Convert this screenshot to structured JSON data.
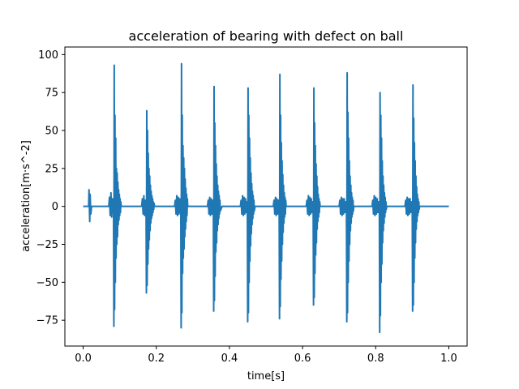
{
  "chart_data": {
    "type": "line",
    "title": "acceleration of bearing with defect on ball",
    "xlabel": "time[s]",
    "ylabel": "acceleration[m·s^-2]",
    "xlim": [
      -0.05,
      1.05
    ],
    "ylim": [
      -92,
      105
    ],
    "xticks": [
      0.0,
      0.2,
      0.4,
      0.6,
      0.8,
      1.0
    ],
    "xtick_labels": [
      "0.0",
      "0.2",
      "0.4",
      "0.6",
      "0.8",
      "1.0"
    ],
    "yticks": [
      -75,
      -50,
      -25,
      0,
      25,
      50,
      75,
      100
    ],
    "ytick_labels": [
      "−75",
      "−50",
      "−25",
      "0",
      "25",
      "50",
      "75",
      "100"
    ],
    "grid": false,
    "legend": "none",
    "series": [
      {
        "color": "#1f77b4",
        "x": [
          0.0,
          0.015,
          0.016,
          0.018,
          0.019,
          0.021,
          0.023,
          0.03,
          0.07,
          0.072,
          0.074,
          0.076,
          0.078,
          0.08,
          0.082,
          0.083,
          0.084,
          0.085,
          0.086,
          0.087,
          0.088,
          0.089,
          0.09,
          0.091,
          0.092,
          0.093,
          0.094,
          0.095,
          0.096,
          0.097,
          0.098,
          0.099,
          0.1,
          0.101,
          0.102,
          0.103,
          0.104,
          0.11,
          0.16,
          0.162,
          0.164,
          0.166,
          0.168,
          0.17,
          0.171,
          0.172,
          0.173,
          0.174,
          0.175,
          0.176,
          0.177,
          0.178,
          0.179,
          0.18,
          0.181,
          0.182,
          0.183,
          0.184,
          0.185,
          0.186,
          0.187,
          0.188,
          0.189,
          0.19,
          0.191,
          0.192,
          0.193,
          0.194,
          0.195,
          0.2,
          0.25,
          0.252,
          0.254,
          0.256,
          0.258,
          0.26,
          0.262,
          0.264,
          0.266,
          0.267,
          0.268,
          0.269,
          0.27,
          0.271,
          0.272,
          0.273,
          0.274,
          0.275,
          0.276,
          0.277,
          0.278,
          0.279,
          0.28,
          0.281,
          0.282,
          0.283,
          0.284,
          0.285,
          0.286,
          0.29,
          0.34,
          0.342,
          0.344,
          0.346,
          0.348,
          0.35,
          0.352,
          0.354,
          0.355,
          0.356,
          0.357,
          0.358,
          0.359,
          0.36,
          0.361,
          0.362,
          0.363,
          0.364,
          0.365,
          0.366,
          0.367,
          0.368,
          0.369,
          0.37,
          0.371,
          0.372,
          0.373,
          0.374,
          0.375,
          0.38,
          0.43,
          0.432,
          0.434,
          0.436,
          0.438,
          0.44,
          0.442,
          0.444,
          0.446,
          0.447,
          0.448,
          0.449,
          0.45,
          0.451,
          0.452,
          0.453,
          0.454,
          0.455,
          0.456,
          0.457,
          0.458,
          0.459,
          0.46,
          0.461,
          0.462,
          0.463,
          0.464,
          0.465,
          0.466,
          0.467,
          0.468,
          0.47,
          0.52,
          0.522,
          0.524,
          0.526,
          0.528,
          0.53,
          0.532,
          0.534,
          0.535,
          0.536,
          0.537,
          0.538,
          0.539,
          0.54,
          0.541,
          0.542,
          0.543,
          0.544,
          0.545,
          0.546,
          0.547,
          0.548,
          0.549,
          0.55,
          0.551,
          0.552,
          0.553,
          0.554,
          0.555,
          0.56,
          0.61,
          0.612,
          0.614,
          0.616,
          0.618,
          0.62,
          0.622,
          0.624,
          0.626,
          0.627,
          0.628,
          0.629,
          0.63,
          0.631,
          0.632,
          0.633,
          0.634,
          0.635,
          0.636,
          0.637,
          0.638,
          0.639,
          0.64,
          0.641,
          0.642,
          0.643,
          0.644,
          0.645,
          0.646,
          0.647,
          0.648,
          0.65,
          0.7,
          0.702,
          0.704,
          0.706,
          0.708,
          0.71,
          0.712,
          0.714,
          0.716,
          0.718,
          0.719,
          0.72,
          0.721,
          0.722,
          0.723,
          0.724,
          0.725,
          0.726,
          0.727,
          0.728,
          0.729,
          0.73,
          0.731,
          0.732,
          0.733,
          0.734,
          0.735,
          0.736,
          0.737,
          0.738,
          0.739,
          0.74,
          0.79,
          0.792,
          0.794,
          0.796,
          0.798,
          0.8,
          0.802,
          0.804,
          0.806,
          0.808,
          0.809,
          0.81,
          0.811,
          0.812,
          0.813,
          0.814,
          0.815,
          0.816,
          0.817,
          0.818,
          0.819,
          0.82,
          0.821,
          0.822,
          0.823,
          0.824,
          0.825,
          0.826,
          0.827,
          0.828,
          0.829,
          0.83,
          0.88,
          0.882,
          0.884,
          0.886,
          0.888,
          0.89,
          0.892,
          0.894,
          0.896,
          0.898,
          0.899,
          0.9,
          0.901,
          0.902,
          0.903,
          0.904,
          0.905,
          0.906,
          0.907,
          0.908,
          0.909,
          0.91,
          0.911,
          0.912,
          0.913,
          0.914,
          0.915,
          0.916,
          0.917,
          0.918,
          0.919,
          0.92,
          0.95,
          0.97,
          1.0
        ],
        "y": [
          0,
          0,
          11,
          -10,
          8,
          -5,
          0,
          0,
          0,
          6,
          -6,
          9,
          -7,
          5,
          -4,
          3,
          -79,
          93,
          -68,
          60,
          -50,
          45,
          -34,
          25,
          -25,
          22,
          -20,
          16,
          -12,
          11,
          -9,
          8,
          -6,
          5,
          -4,
          3,
          0,
          0,
          0,
          5,
          -5,
          7,
          -6,
          4,
          -4,
          3,
          -57,
          63,
          -52,
          50,
          -38,
          35,
          -28,
          25,
          -22,
          20,
          -16,
          14,
          -11,
          10,
          -8,
          7,
          -6,
          5,
          -4,
          3,
          -2,
          2,
          0,
          0,
          0,
          4,
          -5,
          7,
          -6,
          6,
          -5,
          5,
          -4,
          3,
          -80,
          94,
          -70,
          60,
          -44,
          40,
          -34,
          32,
          -28,
          25,
          -20,
          18,
          -15,
          12,
          -10,
          8,
          -6,
          5,
          0,
          0,
          0,
          4,
          -5,
          6,
          -6,
          5,
          -5,
          4,
          -3,
          3,
          -69,
          79,
          -62,
          55,
          -46,
          40,
          -30,
          28,
          -24,
          20,
          -16,
          14,
          -12,
          10,
          -8,
          7,
          -5,
          4,
          -3,
          0,
          0,
          4,
          -5,
          7,
          -6,
          6,
          -5,
          5,
          -4,
          3,
          -3,
          2,
          -76,
          78,
          -70,
          60,
          -50,
          45,
          -36,
          32,
          -26,
          22,
          -18,
          15,
          -12,
          10,
          -8,
          7,
          -5,
          4,
          -3,
          0,
          0,
          4,
          -5,
          6,
          -6,
          5,
          -5,
          4,
          -3,
          3,
          -74,
          87,
          -66,
          60,
          -48,
          42,
          -36,
          30,
          -25,
          21,
          -17,
          14,
          -11,
          9,
          -7,
          6,
          -5,
          4,
          0,
          0,
          0,
          4,
          -5,
          7,
          -6,
          6,
          -5,
          5,
          -4,
          3,
          -3,
          2,
          -65,
          78,
          -60,
          55,
          -44,
          40,
          -32,
          28,
          -24,
          20,
          -15,
          13,
          -10,
          8,
          -7,
          5,
          -4,
          3,
          0,
          0,
          0,
          4,
          -5,
          6,
          -6,
          5,
          -5,
          5,
          -4,
          3,
          -3,
          2,
          -76,
          88,
          -70,
          62,
          -50,
          45,
          -36,
          30,
          -25,
          20,
          -16,
          14,
          -11,
          9,
          -7,
          6,
          -5,
          4,
          -3,
          0,
          0,
          4,
          -5,
          7,
          -6,
          6,
          -5,
          5,
          -4,
          3,
          -3,
          2,
          -83,
          75,
          -72,
          60,
          -50,
          45,
          -38,
          30,
          -24,
          20,
          -16,
          14,
          -11,
          9,
          -7,
          6,
          -4,
          3,
          -2,
          0,
          0,
          4,
          -5,
          6,
          -6,
          5,
          -5,
          5,
          -4,
          3,
          -3,
          2,
          -69,
          80,
          -65,
          58,
          -50,
          42,
          -34,
          30,
          -24,
          20,
          -15,
          13,
          -10,
          8,
          -6,
          5,
          -4,
          3,
          -2,
          0,
          0,
          0,
          0
        ]
      }
    ]
  }
}
